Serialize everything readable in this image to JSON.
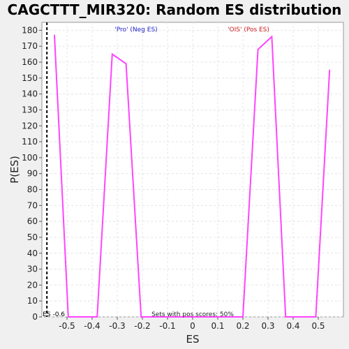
{
  "chart_data": {
    "type": "line",
    "title": "CAGCTTT_MIR320: Random ES distribution",
    "xlabel": "ES",
    "ylabel": "P(ES)",
    "xlim": [
      -0.6,
      0.6
    ],
    "ylim": [
      0,
      185
    ],
    "x_ticks": [
      -0.5,
      -0.4,
      -0.3,
      -0.2,
      -0.1,
      0,
      0.1,
      0.2,
      0.3,
      0.4,
      0.5
    ],
    "x_tick_labels": [
      "-0.5",
      "-0.4",
      "-0.3",
      "-0.2",
      "-0.1",
      "0",
      "0.1",
      "0.2",
      "0.3",
      "0.4",
      "0.5"
    ],
    "y_ticks": [
      0,
      10,
      20,
      30,
      40,
      50,
      60,
      70,
      80,
      90,
      100,
      110,
      120,
      130,
      140,
      150,
      160,
      170,
      180
    ],
    "grid": true,
    "series": [
      {
        "color": "#ff44ff",
        "x": [
          -0.55,
          -0.495,
          -0.38,
          -0.32,
          -0.265,
          -0.205,
          0.2,
          0.26,
          0.315,
          0.37,
          0.49,
          0.545
        ],
        "y": [
          177,
          0,
          0,
          165,
          159,
          0,
          0,
          168,
          176,
          0,
          0,
          155
        ]
      }
    ],
    "annotations": {
      "neg_label": "'Pro' (Neg ES)",
      "neg_color": "#2222cc",
      "pos_label": "'OIS' (Pos ES)",
      "pos_color": "#cc2222",
      "sets_label": "Sets with pos scores: 50%",
      "es_label": "ES -0.6",
      "es_marker": -0.58
    }
  }
}
